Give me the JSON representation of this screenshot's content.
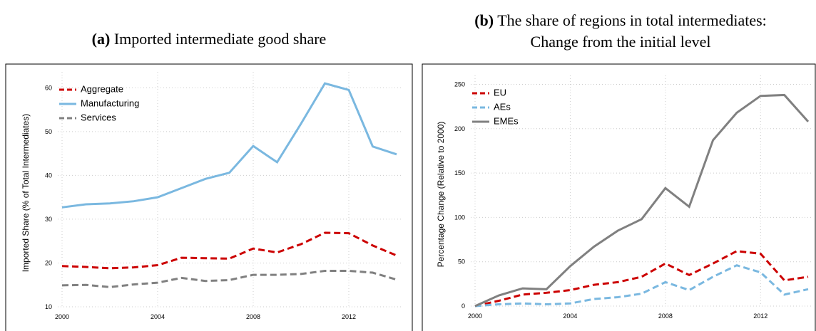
{
  "chart_data": [
    {
      "type": "line",
      "label": "(a)",
      "title": [
        "Imported intermediate good share"
      ],
      "ylabel": "Imported Share (% of Total Intermediates)",
      "x": [
        2000,
        2001,
        2002,
        2003,
        2004,
        2005,
        2006,
        2007,
        2008,
        2009,
        2010,
        2011,
        2012,
        2013,
        2014
      ],
      "xlim": [
        2000,
        2014
      ],
      "xticks": [
        2000,
        2004,
        2008,
        2012
      ],
      "ylim": [
        10,
        62
      ],
      "yticks": [
        10,
        20,
        30,
        40,
        50,
        60
      ],
      "grid": true,
      "legend": "upper left",
      "series": [
        {
          "name": "Aggregate",
          "color": "#cc0000",
          "style": "dashed",
          "values": [
            19.3,
            19.1,
            18.8,
            19.0,
            19.5,
            21.2,
            21.1,
            21.0,
            23.3,
            22.4,
            24.3,
            26.9,
            26.8,
            24.0,
            21.7
          ]
        },
        {
          "name": "Manufacturing",
          "color": "#7ab8e0",
          "style": "solid",
          "values": [
            32.7,
            33.4,
            33.6,
            34.1,
            35.0,
            37.1,
            39.2,
            40.6,
            46.7,
            43.0,
            51.8,
            61.0,
            59.5,
            46.6,
            44.8
          ]
        },
        {
          "name": "Services",
          "color": "#808080",
          "style": "dashed",
          "values": [
            14.9,
            15.0,
            14.5,
            15.1,
            15.5,
            16.6,
            15.9,
            16.1,
            17.3,
            17.3,
            17.5,
            18.2,
            18.2,
            17.8,
            16.2
          ]
        }
      ]
    },
    {
      "type": "line",
      "label": "(b)",
      "title": [
        "The share of regions in total intermediates:",
        "Change from the initial level"
      ],
      "ylabel": "Percentage Change (Relative to 2000)",
      "x": [
        2000,
        2001,
        2002,
        2003,
        2004,
        2005,
        2006,
        2007,
        2008,
        2009,
        2010,
        2011,
        2012,
        2013,
        2014
      ],
      "xlim": [
        2000,
        2014
      ],
      "xticks": [
        2000,
        2004,
        2008,
        2012
      ],
      "ylim": [
        0,
        252
      ],
      "yticks": [
        0,
        50,
        100,
        150,
        200,
        250
      ],
      "grid": true,
      "legend": "upper left",
      "series": [
        {
          "name": "EU",
          "color": "#cc0000",
          "style": "dashed",
          "values": [
            0,
            6,
            13,
            15,
            18,
            24,
            27,
            33,
            48,
            35,
            48,
            62,
            59,
            29,
            33
          ]
        },
        {
          "name": "AEs",
          "color": "#7ab8e0",
          "style": "dashed",
          "values": [
            0,
            2,
            3,
            2,
            3,
            8,
            10,
            14,
            27,
            18,
            33,
            46,
            38,
            13,
            19
          ]
        },
        {
          "name": "EMEs",
          "color": "#808080",
          "style": "solid",
          "values": [
            0,
            12,
            20,
            19,
            45,
            67,
            85,
            98,
            133,
            112,
            187,
            218,
            237,
            238,
            208
          ]
        }
      ]
    }
  ]
}
